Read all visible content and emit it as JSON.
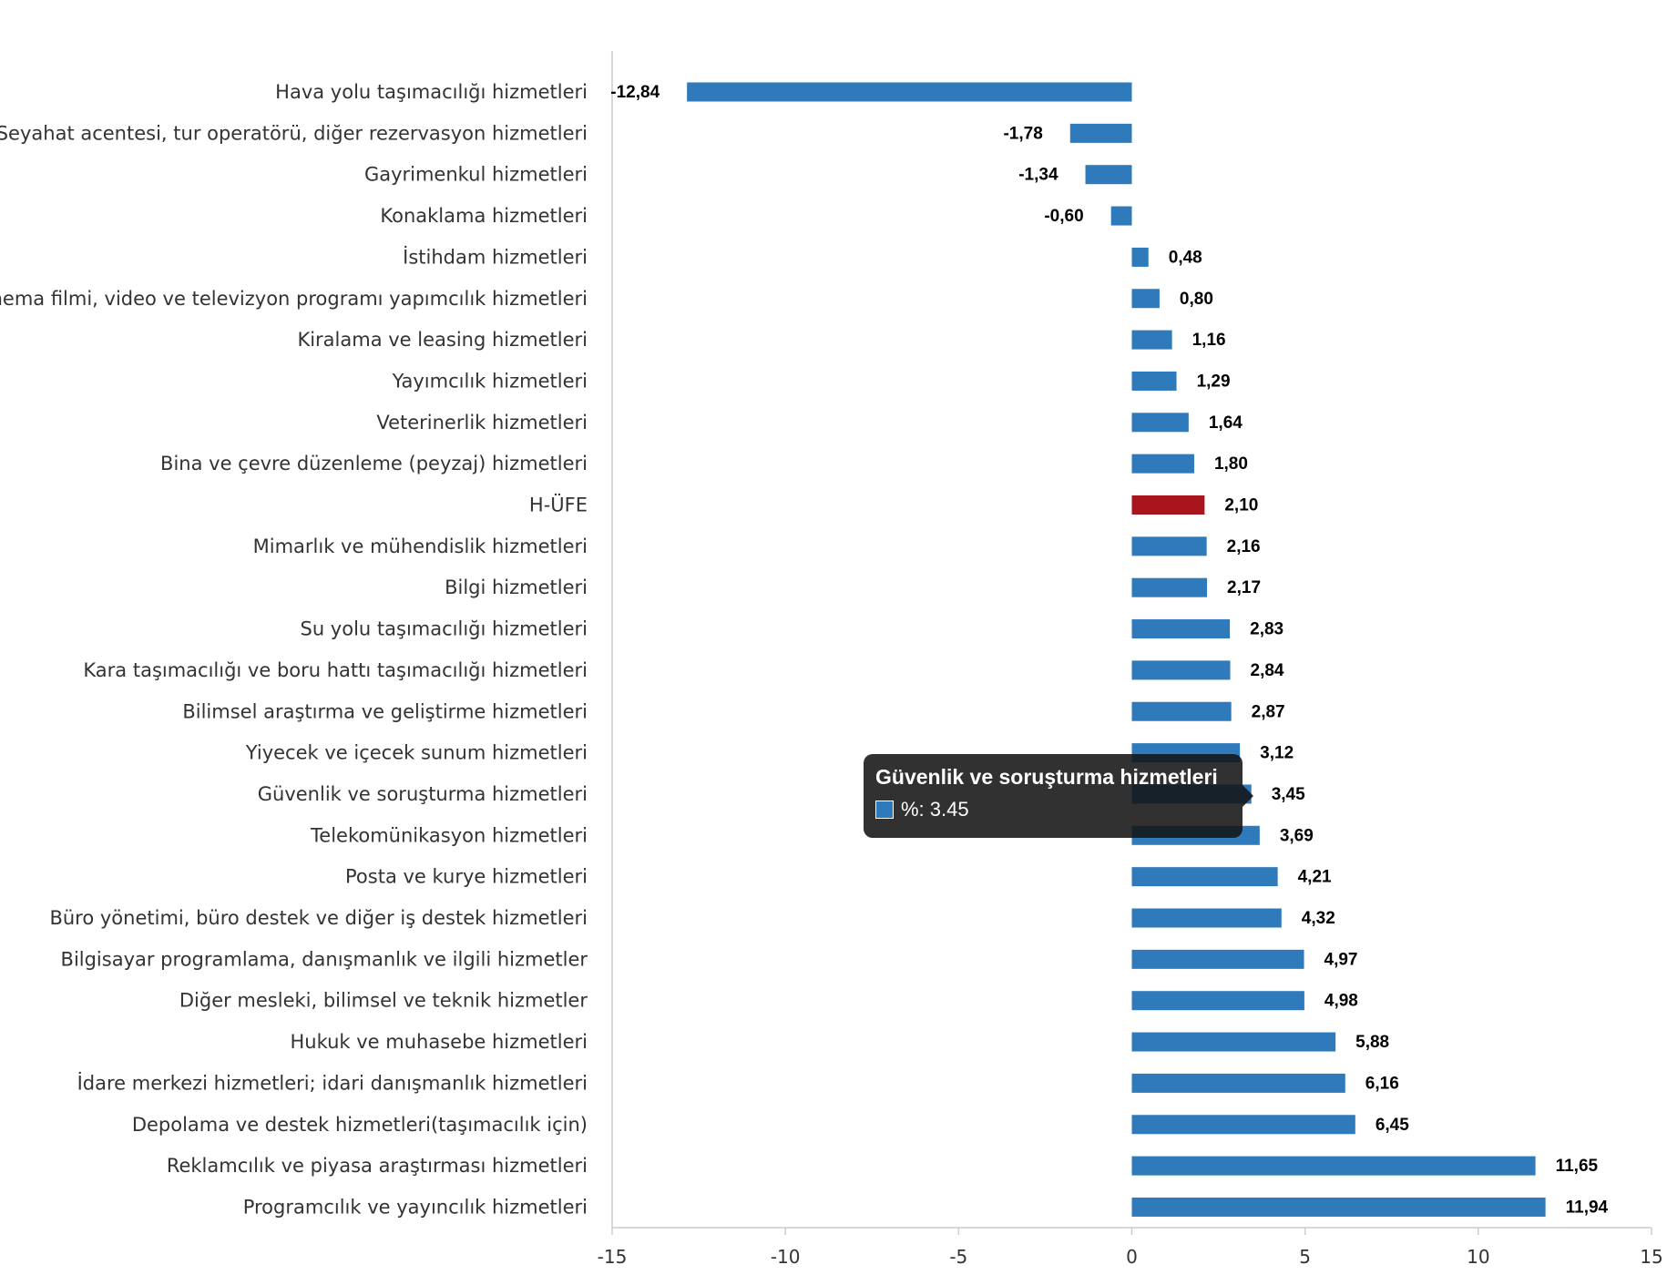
{
  "chart_data": {
    "type": "bar",
    "orientation": "horizontal",
    "categories": [
      "Hava yolu taşımacılığı hizmetleri",
      "Seyahat acentesi, tur operatörü, diğer rezervasyon hizmetleri",
      "Gayrimenkul hizmetleri",
      "Konaklama hizmetleri",
      "İstihdam hizmetleri",
      "Sinema filmi, video ve televizyon programı yapımcılık hizmetleri",
      "Kiralama ve leasing hizmetleri",
      "Yayımcılık hizmetleri",
      "Veterinerlik hizmetleri",
      "Bina ve çevre düzenleme (peyzaj) hizmetleri",
      "H-ÜFE",
      "Mimarlık ve mühendislik hizmetleri",
      "Bilgi hizmetleri",
      "Su yolu taşımacılığı hizmetleri",
      "Kara taşımacılığı ve boru hattı taşımacılığı hizmetleri",
      "Bilimsel araştırma ve geliştirme hizmetleri",
      "Yiyecek ve içecek sunum hizmetleri",
      "Güvenlik ve soruşturma hizmetleri",
      "Telekomünikasyon hizmetleri",
      "Posta ve kurye hizmetleri",
      "Büro yönetimi, büro destek ve diğer iş destek hizmetleri",
      "Bilgisayar programlama, danışmanlık ve ilgili hizmetler",
      "Diğer mesleki, bilimsel ve teknik hizmetler",
      "Hukuk ve muhasebe hizmetleri",
      "İdare merkezi hizmetleri; idari danışmanlık hizmetleri",
      "Depolama ve destek hizmetleri(taşımacılık için)",
      "Reklamcılık ve piyasa araştırması hizmetleri",
      "Programcılık ve yayıncılık hizmetleri"
    ],
    "values": [
      -12.84,
      -1.78,
      -1.34,
      -0.6,
      0.48,
      0.8,
      1.16,
      1.29,
      1.64,
      1.8,
      2.1,
      2.16,
      2.17,
      2.83,
      2.84,
      2.87,
      3.12,
      3.45,
      3.69,
      4.21,
      4.32,
      4.97,
      4.98,
      5.88,
      6.16,
      6.45,
      11.65,
      11.94
    ],
    "value_labels": [
      "-12,84",
      "-1,78",
      "-1,34",
      "-0,60",
      "0,48",
      "0,80",
      "1,16",
      "1,29",
      "1,64",
      "1,80",
      "2,10",
      "2,16",
      "2,17",
      "2,83",
      "2,84",
      "2,87",
      "3,12",
      "3,45",
      "3,69",
      "4,21",
      "4,32",
      "4,97",
      "4,98",
      "5,88",
      "6,16",
      "6,45",
      "11,65",
      "11,94"
    ],
    "highlight_category": "H-ÜFE",
    "xlim": [
      -15,
      15
    ],
    "xticks": [
      -15,
      -10,
      -5,
      0,
      5,
      10,
      15
    ],
    "xlabel": "",
    "ylabel": "",
    "grid": false,
    "series_color": "#2f7abb",
    "highlight_color": "#a8151c"
  },
  "tooltip": {
    "title": "Güvenlik ve soruşturma hizmetleri",
    "series_label": "%: 3.45",
    "category_index": 17
  }
}
